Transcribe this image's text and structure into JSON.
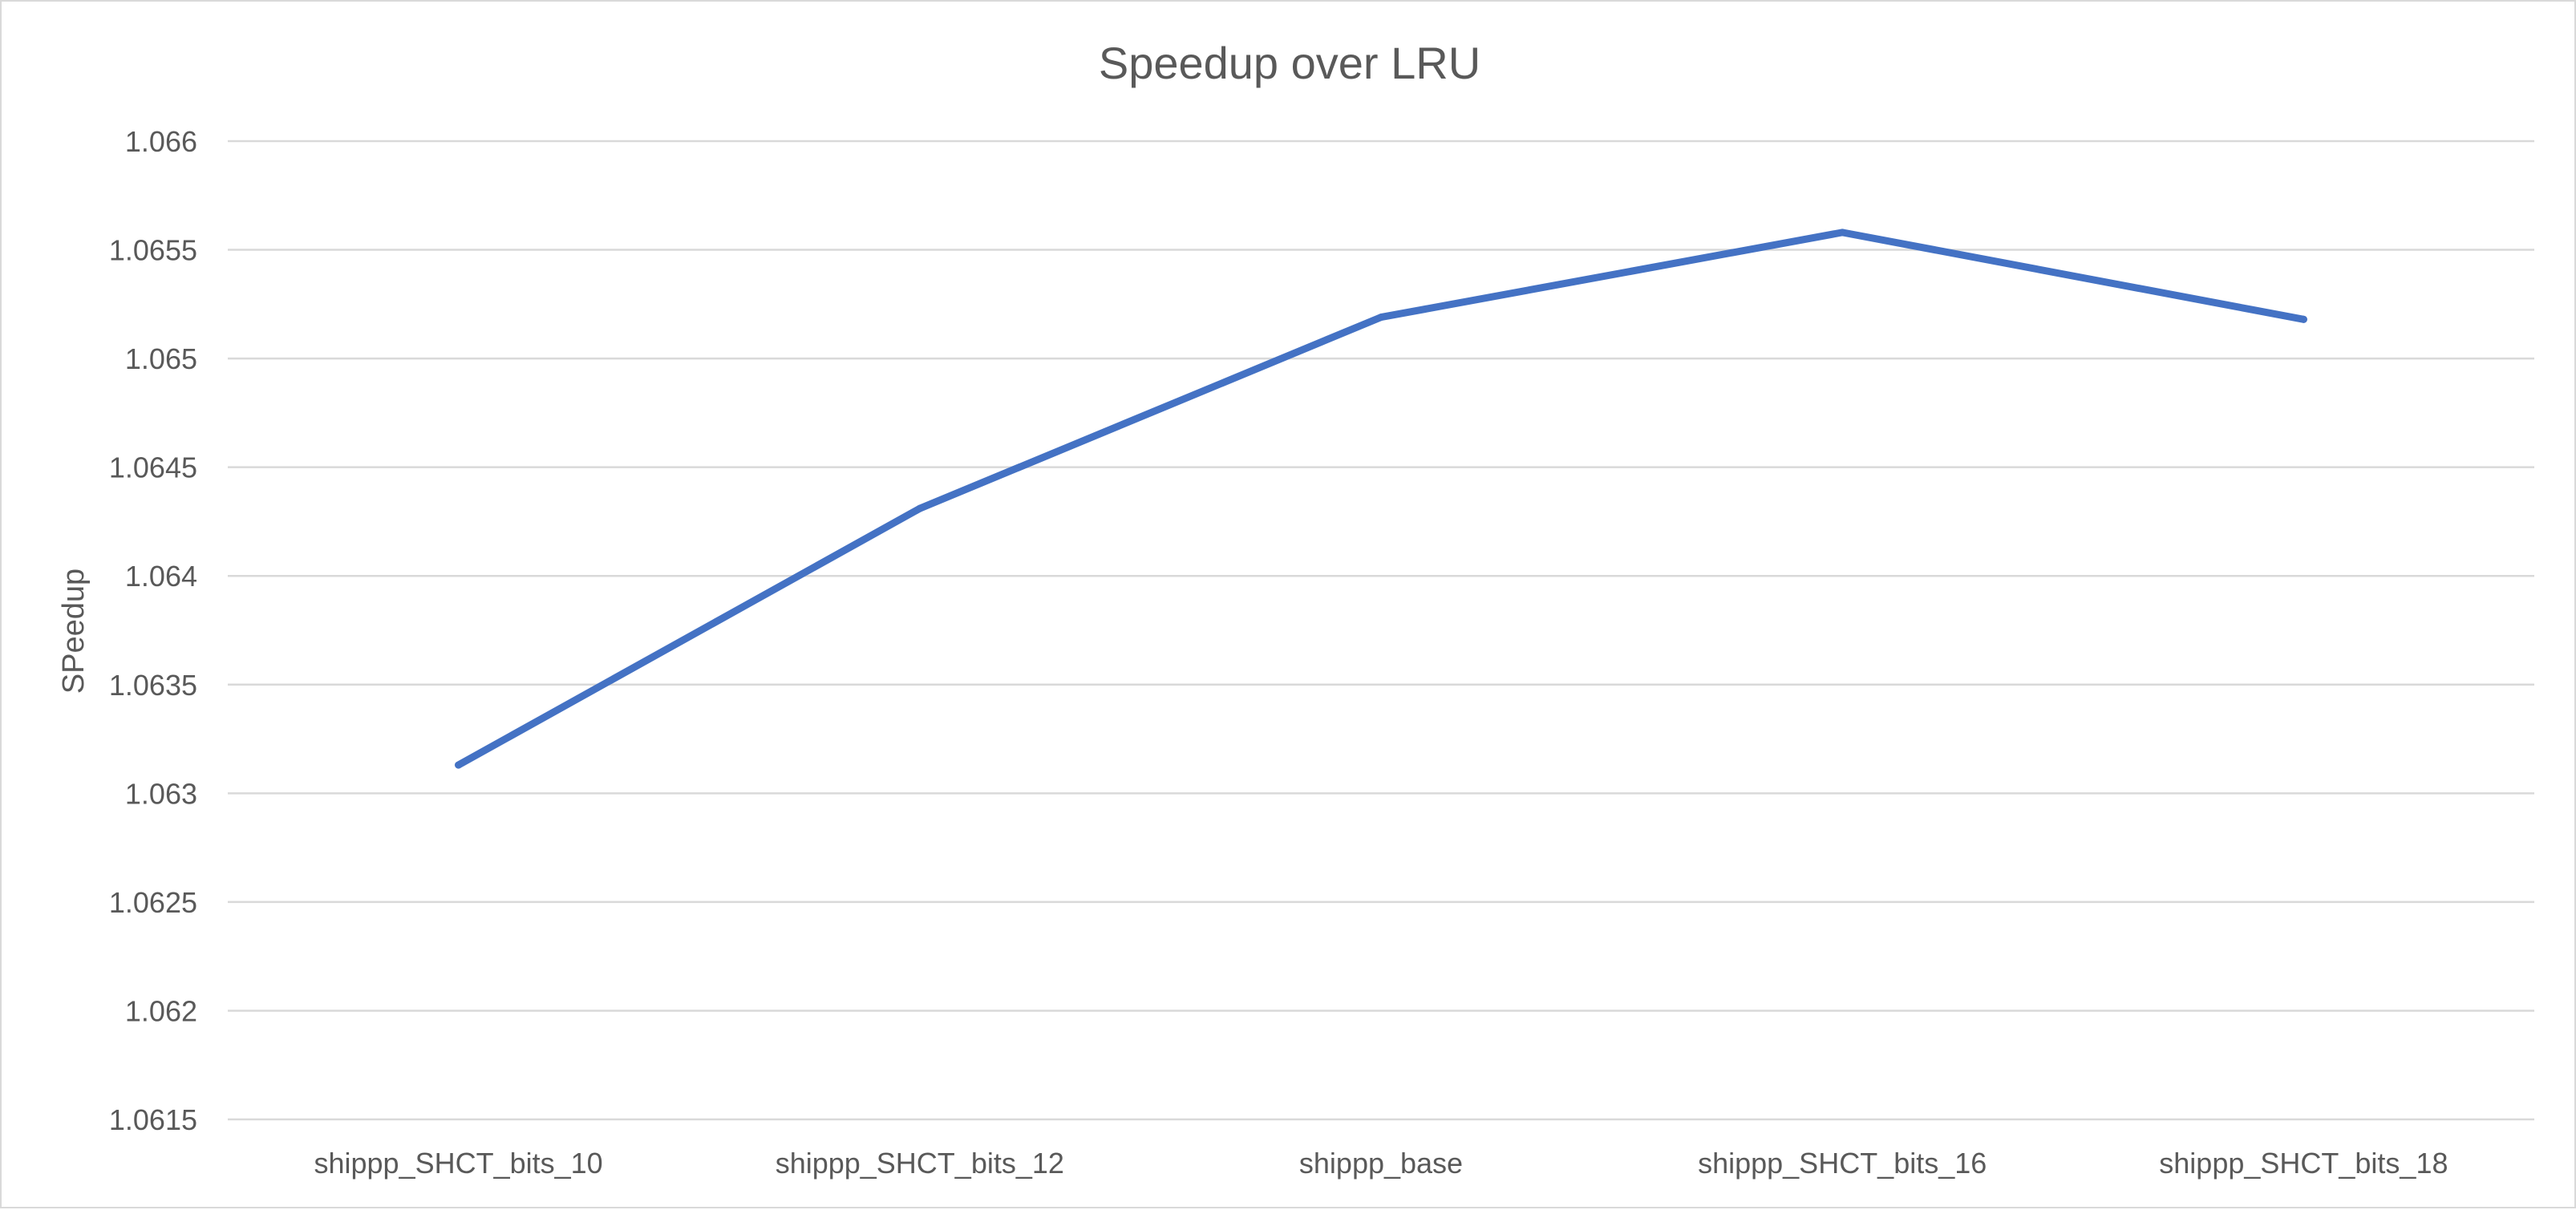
{
  "chart_data": {
    "type": "line",
    "title": "Speedup over LRU",
    "xlabel": "",
    "ylabel": "SPeedup",
    "categories": [
      "shippp_SHCT_bits_10",
      "shippp_SHCT_bits_12",
      "shippp_base",
      "shippp_SHCT_bits_16",
      "shippp_SHCT_bits_18"
    ],
    "series": [
      {
        "values": [
          1.06313,
          1.06431,
          1.06519,
          1.06558,
          1.06518
        ],
        "color": "#4472c4"
      }
    ],
    "ylim": [
      1.0615,
      1.066
    ],
    "yticks": [
      "1.066",
      "1.0655",
      "1.065",
      "1.0645",
      "1.064",
      "1.0635",
      "1.063",
      "1.0625",
      "1.062",
      "1.0615"
    ],
    "grid": true,
    "legend": "none"
  }
}
